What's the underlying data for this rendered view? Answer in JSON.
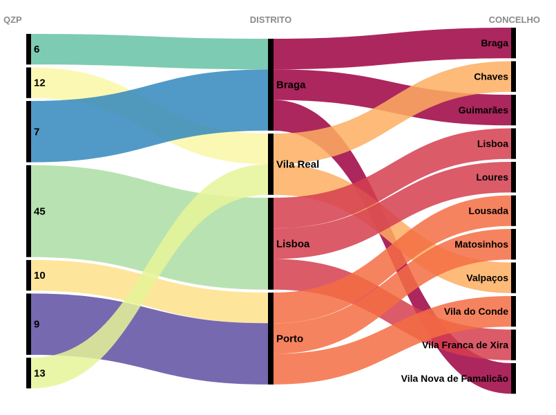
{
  "chart_data": {
    "type": "alluvial",
    "axes": [
      {
        "title": "QZP",
        "nodes": [
          "6",
          "12",
          "7",
          "45",
          "10",
          "9",
          "13"
        ]
      },
      {
        "title": "DISTRITO",
        "nodes": [
          "Braga",
          "Vila Real",
          "Lisboa",
          "Porto"
        ]
      },
      {
        "title": "CONCELHO",
        "nodes": [
          "Braga",
          "Chaves",
          "Guimarães",
          "Lisboa",
          "Loures",
          "Lousada",
          "Matosinhos",
          "Valpaços",
          "Vila do Conde",
          "Vila Franca de Xira",
          "Vila Nova de Famalicão"
        ]
      }
    ],
    "links_qzp_distrito": [
      {
        "source": "6",
        "target": "Braga",
        "value": 1
      },
      {
        "source": "7",
        "target": "Braga",
        "value": 2
      },
      {
        "source": "12",
        "target": "Vila Real",
        "value": 1
      },
      {
        "source": "13",
        "target": "Vila Real",
        "value": 1
      },
      {
        "source": "45",
        "target": "Lisboa",
        "value": 3
      },
      {
        "source": "10",
        "target": "Porto",
        "value": 1
      },
      {
        "source": "9",
        "target": "Porto",
        "value": 2
      }
    ],
    "links_distrito_concelho": [
      {
        "source": "Braga",
        "target": "Braga",
        "value": 1
      },
      {
        "source": "Braga",
        "target": "Guimarães",
        "value": 1
      },
      {
        "source": "Braga",
        "target": "Vila Nova de Famalicão",
        "value": 1
      },
      {
        "source": "Vila Real",
        "target": "Chaves",
        "value": 1
      },
      {
        "source": "Vila Real",
        "target": "Valpaços",
        "value": 1
      },
      {
        "source": "Lisboa",
        "target": "Lisboa",
        "value": 1
      },
      {
        "source": "Lisboa",
        "target": "Loures",
        "value": 1
      },
      {
        "source": "Lisboa",
        "target": "Vila Franca de Xira",
        "value": 1
      },
      {
        "source": "Porto",
        "target": "Lousada",
        "value": 1
      },
      {
        "source": "Porto",
        "target": "Matosinhos",
        "value": 1
      },
      {
        "source": "Porto",
        "target": "Vila do Conde",
        "value": 1
      }
    ],
    "colors": {
      "qzp": {
        "6": "#66c2a5",
        "12": "#f9f7a6",
        "7": "#3288bd",
        "45": "#abdda4",
        "10": "#fee08b",
        "9": "#5e4fa2",
        "13": "#e6f598"
      },
      "distrito": {
        "Braga": "#9e0142",
        "Vila Real": "#fdae61",
        "Lisboa": "#d53e4f",
        "Porto": "#f46d43"
      },
      "node_bar": "#000000",
      "axis_title": "#8a8a8a"
    }
  }
}
